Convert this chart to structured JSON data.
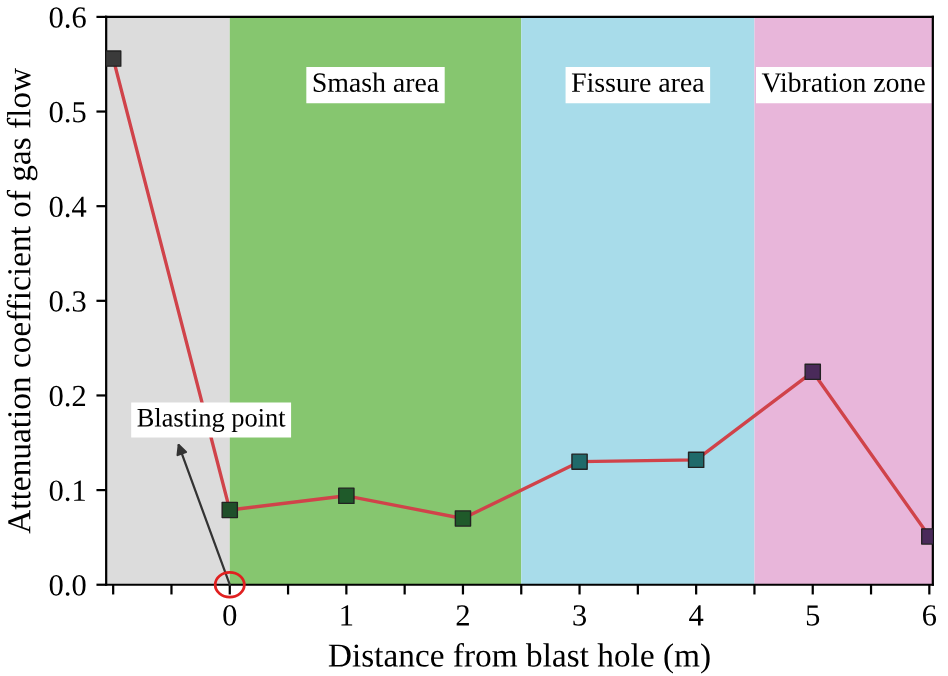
{
  "chart_data": {
    "type": "line",
    "xlabel": "Distance from blast hole (m)",
    "ylabel": "Attenuation coefficient of gas flow",
    "x": [
      -1,
      0,
      1,
      2,
      3,
      4,
      5,
      6
    ],
    "series": [
      {
        "color": "#d0434a",
        "colors": [
          "#3a3a3a",
          "#1f4f2a",
          "#1f5a2a",
          "#1f5a2a",
          "#1f6a6a",
          "#1f6a6a",
          "#4a2a5a",
          "#4a2a5a"
        ],
        "values": [
          0.556,
          0.079,
          0.094,
          0.07,
          0.13,
          0.132,
          0.225,
          0.051
        ]
      }
    ],
    "xlim": [
      -1.06,
      6.03
    ],
    "ylim": [
      0,
      0.6
    ],
    "xticks": [
      {
        "value": -1,
        "label": null
      },
      {
        "value": -0.5,
        "label": null
      },
      0,
      {
        "value": 0.5,
        "label": null
      },
      1,
      {
        "value": 1.5,
        "label": null
      },
      2,
      {
        "value": 2.5,
        "label": null
      },
      3,
      {
        "value": 3.5,
        "label": null
      },
      4,
      {
        "value": 4.5,
        "label": null
      },
      5,
      {
        "value": 5.5,
        "label": null
      },
      6
    ],
    "yticks": [
      {
        "value": 0,
        "label": "0.0"
      },
      0.1,
      0.2,
      0.3,
      0.4,
      0.5,
      0.6
    ],
    "bands": [
      {
        "axis": "x",
        "from": -1.06,
        "to": 0,
        "color": "#dcdcdc",
        "label": null
      },
      {
        "axis": "x",
        "from": 0,
        "to": 2.5,
        "color": "#86c66f",
        "label": "Smash area"
      },
      {
        "axis": "x",
        "from": 2.5,
        "to": 4.5,
        "color": "#a8dcea",
        "label": "Fissure area"
      },
      {
        "axis": "x",
        "from": 4.5,
        "to": 6.03,
        "color": "#e8b6da",
        "label": "Vibration zone"
      }
    ],
    "annotations": [
      {
        "text": "Blasting point",
        "x": 0,
        "y": 0
      }
    ],
    "marker": "square",
    "line_style": "solid"
  }
}
